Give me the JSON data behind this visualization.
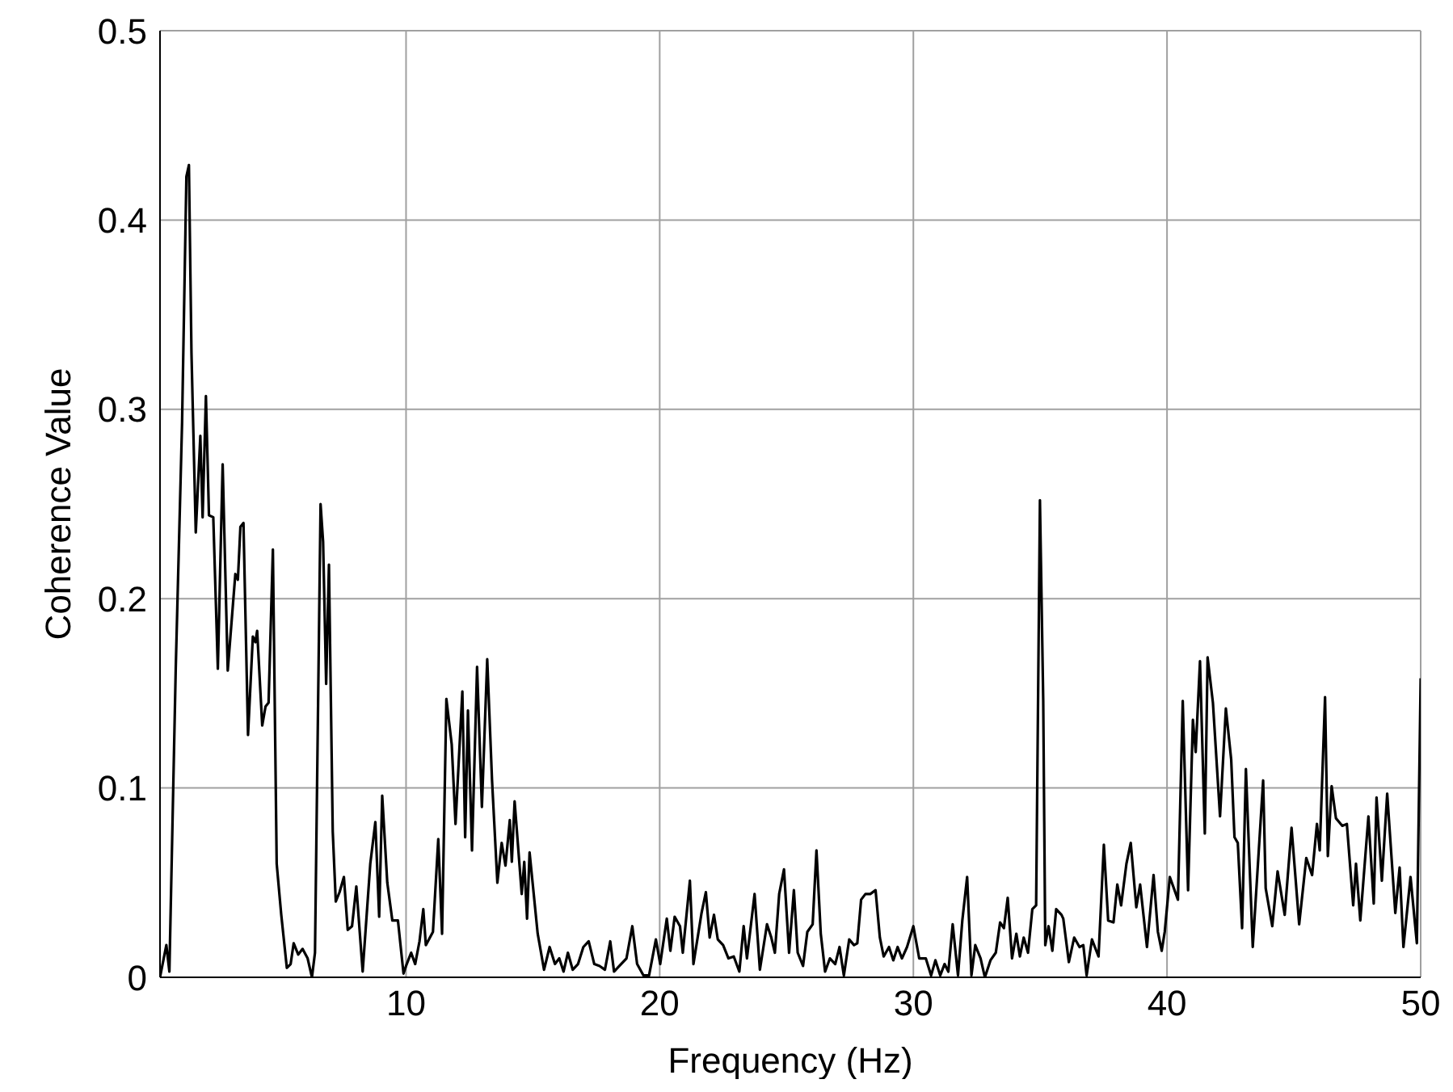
{
  "chart_data": {
    "type": "line",
    "xlabel": "Frequency (Hz)",
    "ylabel": "Coherence Value",
    "x": [
      0.3,
      0.55,
      0.67,
      0.92,
      1.17,
      1.34,
      1.44,
      1.54,
      1.71,
      1.89,
      1.98,
      2.11,
      2.23,
      2.4,
      2.58,
      2.77,
      2.97,
      3.27,
      3.37,
      3.47,
      3.59,
      3.77,
      3.96,
      4.06,
      4.13,
      4.33,
      4.46,
      4.58,
      4.75,
      4.9,
      5.08,
      5.3,
      5.45,
      5.57,
      5.75,
      5.92,
      6.12,
      6.29,
      6.41,
      6.63,
      6.73,
      6.85,
      6.96,
      7.11,
      7.23,
      7.38,
      7.55,
      7.7,
      7.87,
      8.04,
      8.29,
      8.59,
      8.79,
      8.94,
      9.06,
      9.26,
      9.46,
      9.68,
      9.9,
      10,
      10.2,
      10.36,
      10.53,
      10.68,
      10.78,
      11.06,
      11.27,
      11.42,
      11.59,
      11.8,
      11.95,
      12.22,
      12.33,
      12.44,
      12.6,
      12.8,
      12.99,
      13.2,
      13.39,
      13.6,
      13.77,
      13.92,
      14.09,
      14.17,
      14.28,
      14.56,
      14.66,
      14.77,
      14.87,
      15.19,
      15.44,
      15.66,
      15.87,
      16.04,
      16.21,
      16.38,
      16.57,
      16.78,
      16.99,
      17.2,
      17.42,
      17.63,
      17.84,
      18.05,
      18.2,
      18.41,
      18.69,
      18.92,
      19.11,
      19.36,
      19.58,
      19.85,
      20.02,
      20.28,
      20.42,
      20.59,
      20.8,
      20.91,
      21.19,
      21.33,
      21.65,
      21.82,
      21.97,
      22.14,
      22.29,
      22.5,
      22.71,
      22.92,
      23.14,
      23.31,
      23.44,
      23.74,
      23.95,
      24.23,
      24.4,
      24.54,
      24.71,
      24.9,
      25.1,
      25.29,
      25.44,
      25.65,
      25.82,
      26.03,
      26.18,
      26.35,
      26.52,
      26.71,
      26.92,
      27.09,
      27.26,
      27.47,
      27.66,
      27.79,
      27.94,
      28.11,
      28.3,
      28.51,
      28.68,
      28.83,
      29.04,
      29.21,
      29.38,
      29.55,
      29.75,
      30,
      30.23,
      30.49,
      30.7,
      30.87,
      31.06,
      31.23,
      31.38,
      31.55,
      31.76,
      31.93,
      32.12,
      32.29,
      32.44,
      32.65,
      32.82,
      33.04,
      33.25,
      33.42,
      33.57,
      33.72,
      33.89,
      34.06,
      34.2,
      34.35,
      34.52,
      34.69,
      34.84,
      34.99,
      35.12,
      35.2,
      35.33,
      35.48,
      35.63,
      35.84,
      35.91,
      36.13,
      36.34,
      36.55,
      36.7,
      36.83,
      37.04,
      37.3,
      37.51,
      37.68,
      37.89,
      38.04,
      38.19,
      38.4,
      38.57,
      38.79,
      38.94,
      39.21,
      39.47,
      39.64,
      39.79,
      39.91,
      40.11,
      40.43,
      40.62,
      40.83,
      41.02,
      41.13,
      41.3,
      41.49,
      41.6,
      41.81,
      42.09,
      42.32,
      42.53,
      42.66,
      42.79,
      42.96,
      43.11,
      43.38,
      43.79,
      43.89,
      44.15,
      44.36,
      44.64,
      44.91,
      45.21,
      45.49,
      45.72,
      45.91,
      46.02,
      46.23,
      46.34,
      46.49,
      46.66,
      46.91,
      47.09,
      47.34,
      47.45,
      47.62,
      47.94,
      48.15,
      48.26,
      48.47,
      48.68,
      49,
      49.17,
      49.32,
      49.6,
      49.85,
      50
    ],
    "series": [
      {
        "color": "#000000",
        "values": [
          0,
          0.017,
          0.003,
          0.163,
          0.293,
          0.423,
          0.429,
          0.33,
          0.235,
          0.286,
          0.243,
          0.307,
          0.244,
          0.243,
          0.163,
          0.271,
          0.162,
          0.213,
          0.21,
          0.238,
          0.24,
          0.128,
          0.18,
          0.177,
          0.183,
          0.133,
          0.143,
          0.145,
          0.226,
          0.06,
          0.033,
          0.005,
          0.007,
          0.018,
          0.012,
          0.015,
          0.01,
          0,
          0.013,
          0.25,
          0.23,
          0.155,
          0.218,
          0.077,
          0.04,
          0.045,
          0.053,
          0.025,
          0.027,
          0.048,
          0.003,
          0.06,
          0.082,
          0.032,
          0.096,
          0.05,
          0.03,
          0.03,
          0.002,
          0.006,
          0.013,
          0.007,
          0.019,
          0.036,
          0.017,
          0.024,
          0.073,
          0.023,
          0.147,
          0.123,
          0.081,
          0.151,
          0.074,
          0.141,
          0.067,
          0.164,
          0.09,
          0.168,
          0.104,
          0.05,
          0.071,
          0.059,
          0.083,
          0.061,
          0.093,
          0.044,
          0.061,
          0.031,
          0.066,
          0.023,
          0.004,
          0.016,
          0.007,
          0.01,
          0.003,
          0.013,
          0.004,
          0.007,
          0.016,
          0.019,
          0.007,
          0.006,
          0.004,
          0.019,
          0.003,
          0.006,
          0.01,
          0.027,
          0.007,
          0.001,
          0.001,
          0.02,
          0.007,
          0.031,
          0.014,
          0.032,
          0.027,
          0.013,
          0.051,
          0.007,
          0.034,
          0.045,
          0.021,
          0.033,
          0.02,
          0.017,
          0.01,
          0.011,
          0.003,
          0.027,
          0.01,
          0.044,
          0.004,
          0.028,
          0.021,
          0.013,
          0.044,
          0.057,
          0.013,
          0.046,
          0.013,
          0.006,
          0.024,
          0.028,
          0.067,
          0.023,
          0.003,
          0.01,
          0.007,
          0.016,
          0.001,
          0.02,
          0.017,
          0.018,
          0.041,
          0.044,
          0.044,
          0.046,
          0.021,
          0.011,
          0.016,
          0.009,
          0.016,
          0.01,
          0.016,
          0.027,
          0.01,
          0.01,
          0.001,
          0.009,
          0.001,
          0.007,
          0.003,
          0.028,
          0.001,
          0.03,
          0.053,
          0.001,
          0.017,
          0.01,
          0,
          0.009,
          0.013,
          0.029,
          0.026,
          0.042,
          0.01,
          0.023,
          0.011,
          0.021,
          0.013,
          0.036,
          0.038,
          0.252,
          0.146,
          0.017,
          0.027,
          0.014,
          0.036,
          0.033,
          0.031,
          0.008,
          0.021,
          0.016,
          0.017,
          0.001,
          0.02,
          0.011,
          0.07,
          0.03,
          0.029,
          0.049,
          0.038,
          0.06,
          0.071,
          0.037,
          0.049,
          0.016,
          0.054,
          0.024,
          0.014,
          0.024,
          0.053,
          0.041,
          0.146,
          0.046,
          0.136,
          0.119,
          0.167,
          0.076,
          0.169,
          0.145,
          0.085,
          0.142,
          0.115,
          0.074,
          0.071,
          0.026,
          0.11,
          0.016,
          0.104,
          0.047,
          0.027,
          0.056,
          0.033,
          0.079,
          0.028,
          0.063,
          0.054,
          0.081,
          0.067,
          0.148,
          0.064,
          0.101,
          0.084,
          0.08,
          0.081,
          0.038,
          0.06,
          0.03,
          0.085,
          0.039,
          0.095,
          0.051,
          0.097,
          0.034,
          0.058,
          0.016,
          0.053,
          0.018,
          0.158
        ]
      }
    ],
    "xlim": [
      0.3,
      50
    ],
    "xticks": [
      10,
      20,
      30,
      40,
      50
    ],
    "ylim": [
      0,
      0.5
    ],
    "yticks": [
      0,
      0.1,
      0.2,
      0.3,
      0.4,
      0.5
    ],
    "grid": true,
    "marker": "none",
    "line_style": "solid",
    "legend": false
  }
}
